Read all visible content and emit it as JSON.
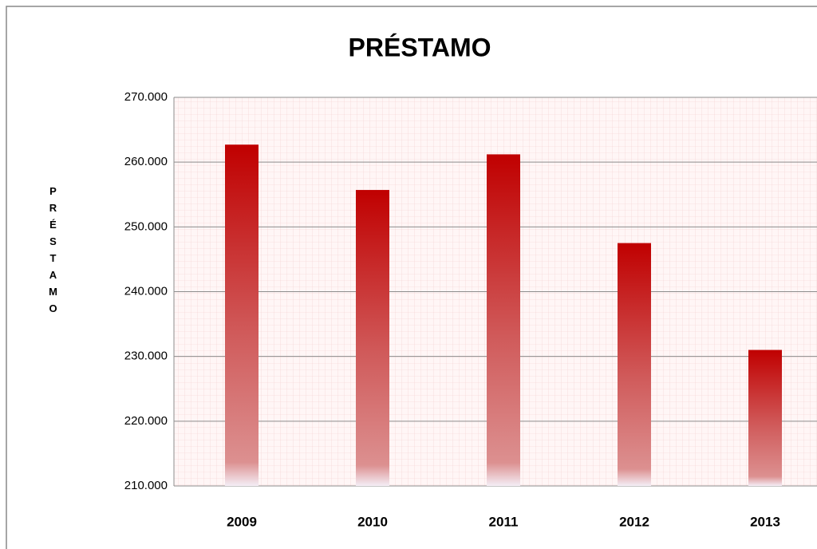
{
  "chart_data": {
    "type": "bar",
    "title": "PRÉSTAMO",
    "y_axis_label": "PRÉSTAMO",
    "categories": [
      "2009",
      "2010",
      "2011",
      "2012",
      "2013"
    ],
    "values": [
      262700,
      255700,
      261200,
      247500,
      231000
    ],
    "color": "#c00000",
    "ylim": [
      210000,
      270000
    ],
    "yticks": [
      {
        "value": 210000,
        "label": "210.000"
      },
      {
        "value": 220000,
        "label": "220.000"
      },
      {
        "value": 230000,
        "label": "230.000"
      },
      {
        "value": 240000,
        "label": "240.000"
      },
      {
        "value": 250000,
        "label": "250.000"
      },
      {
        "value": 260000,
        "label": "260.000"
      },
      {
        "value": 270000,
        "label": "270.000"
      }
    ],
    "grid": true
  }
}
